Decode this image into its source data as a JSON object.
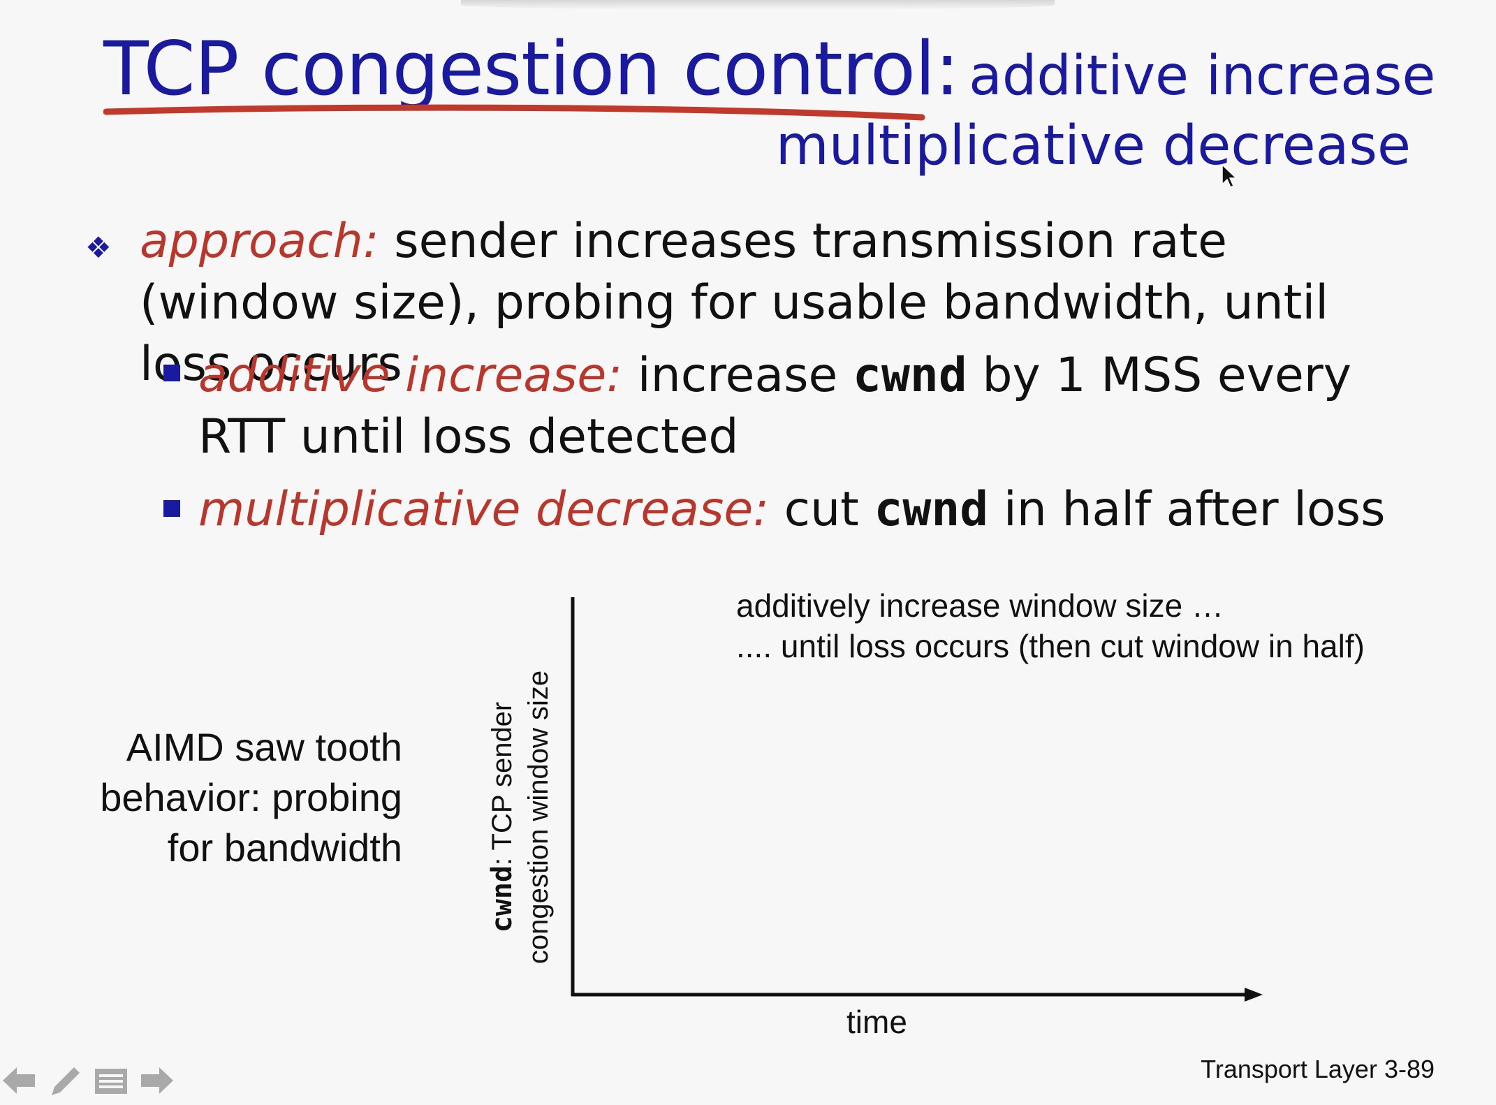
{
  "slide": {
    "title_main": "TCP congestion control:",
    "title_sub": "additive increase",
    "title_line2": "multiplicative decrease",
    "approach": {
      "label": "approach:",
      "text": " sender increases transmission rate (window size), probing for usable bandwidth, until loss occurs"
    },
    "additive": {
      "label": "additive increase:",
      "text_a": " increase ",
      "code": "cwnd",
      "text_b": " by 1 MSS every RTT until loss detected"
    },
    "multiplicative": {
      "label": "multiplicative decrease:",
      "text_a": " cut ",
      "code": "cwnd",
      "text_b": " in half after loss"
    },
    "aimd_lines": [
      "AIMD saw tooth",
      "behavior: probing",
      "for bandwidth"
    ],
    "chart_note_1": "additively increase window size …",
    "chart_note_2": ".... until loss occurs (then cut window in half)",
    "footer": "Transport Layer 3-89"
  },
  "chart_data": {
    "type": "line",
    "xlabel": "time",
    "ylabel_code": "cwnd",
    "ylabel_rest": ": TCP sender",
    "ylabel_line2": "congestion window size",
    "series": []
  },
  "colors": {
    "title": "#1a1a9e",
    "highlight": "#b8372c",
    "bullet": "#1a1a9e"
  }
}
